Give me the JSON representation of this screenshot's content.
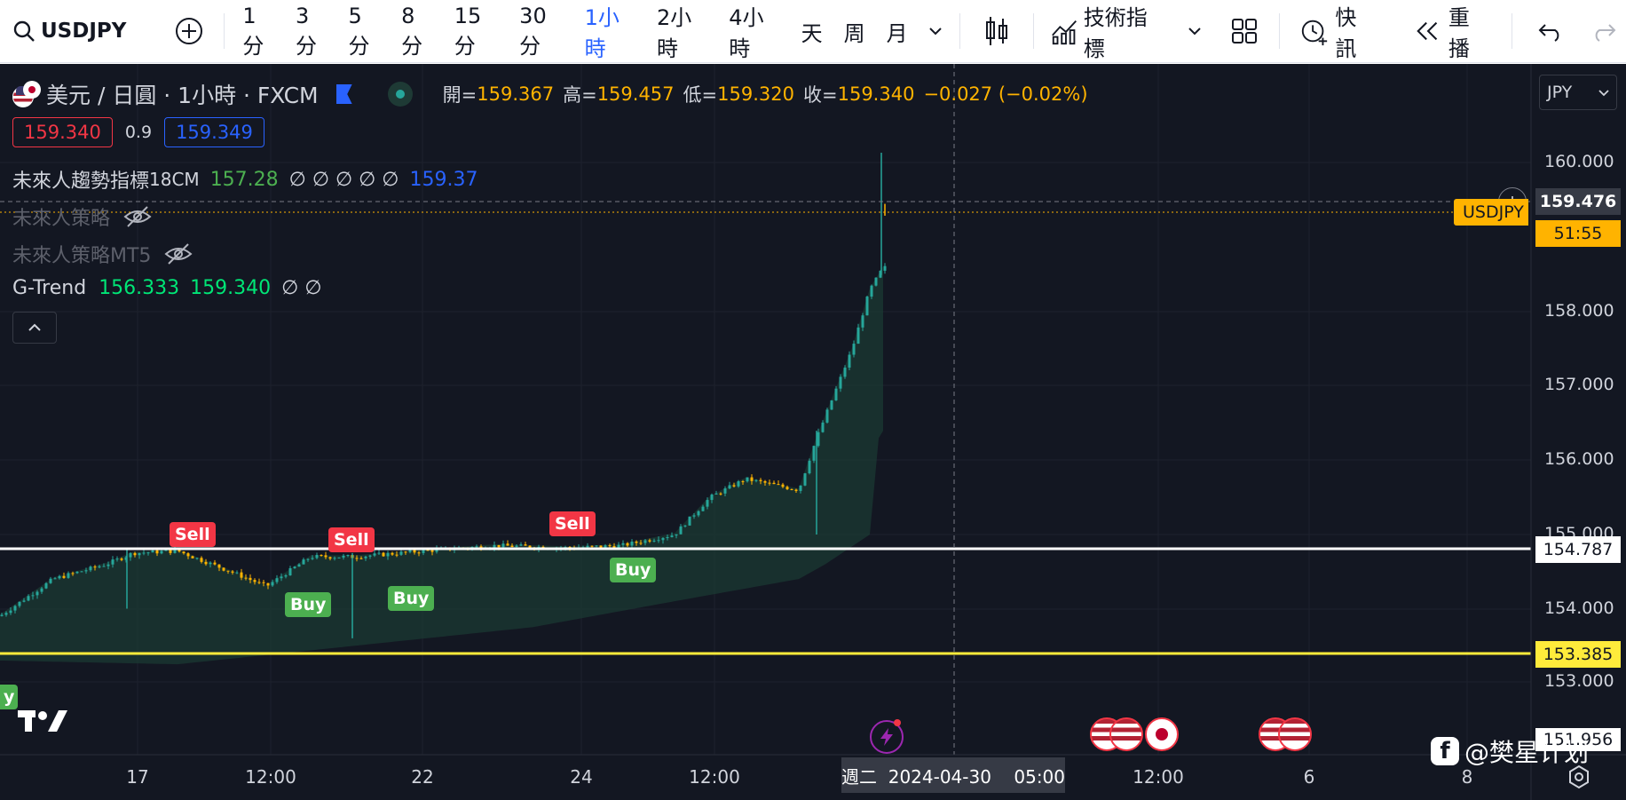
{
  "toolbar": {
    "symbol": "USDJPY",
    "timeframes": [
      "1分",
      "3分",
      "5分",
      "8分",
      "15分",
      "30分",
      "1小時",
      "2小時",
      "4小時",
      "天",
      "周",
      "月"
    ],
    "active_timeframe": "1小時",
    "indicators_label": "技術指標",
    "news_label": "快訊",
    "replay_label": "重播"
  },
  "legend": {
    "title": "美元 / 日圓 · 1小時 · FXCM",
    "open_label": "開=",
    "open": "159.367",
    "high_label": "高=",
    "high": "159.457",
    "low_label": "低=",
    "low": "159.320",
    "close_label": "收=",
    "close": "159.340",
    "change": "−0.027 (−0.02%)",
    "bid": "159.340",
    "spread": "0.9",
    "ask": "159.349",
    "currency": "JPY"
  },
  "indicators": {
    "trend_name": "未來人趨勢指標",
    "trend_param": "18CM",
    "trend_v1": "157.28",
    "trend_empties": "∅ ∅ ∅ ∅ ∅",
    "trend_v2": "159.37",
    "strategy": "未來人策略",
    "strategy_mt5": "未來人策略MT5",
    "gtrend_name": "G-Trend",
    "gtrend_v1": "156.333",
    "gtrend_v2": "159.340",
    "gtrend_empties": "∅ ∅"
  },
  "price_axis": {
    "ticks": [
      "160.000",
      "158.000",
      "157.000",
      "156.000",
      "155.000",
      "154.000",
      "153.000"
    ],
    "current_price": "159.476",
    "countdown": "51:55",
    "symbol_tag": "USDJPY",
    "white_line_label": "154.787",
    "yellow_line_label": "153.385",
    "bottom_label": "151.956"
  },
  "time_axis": {
    "ticks": [
      "17",
      "12:00",
      "22",
      "24",
      "12:00",
      "12:00",
      "6",
      "8"
    ],
    "crosshair_label": "週二  2024-04-30    05:00"
  },
  "signals": {
    "sell": "Sell",
    "buy": "Buy",
    "partial_buy": "y"
  },
  "watermark": "@樊星计划",
  "colors": {
    "background": "#131722",
    "up": "#26a69a",
    "down": "#ffb300",
    "band": "#1b3a33",
    "active_tf": "#2962ff",
    "ohlc_value": "#ffb300",
    "sell": "#f23645",
    "buy": "#4caf50"
  }
}
